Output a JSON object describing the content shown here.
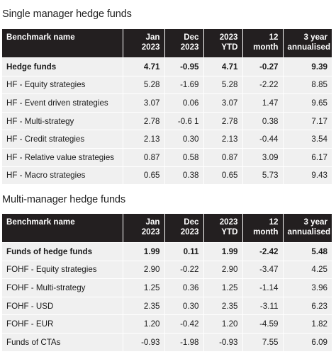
{
  "section1": {
    "title": "Single manager hedge funds",
    "headers": [
      "Benchmark name",
      "Jan\n2023",
      "Dec\n2023",
      "2023\nYTD",
      "12\nmonth",
      "3 year\nannualised"
    ],
    "rows": [
      {
        "name": "Hedge funds",
        "bold": true,
        "values": [
          "4.71",
          "-0.95",
          "4.71",
          "-0.27",
          "9.39"
        ]
      },
      {
        "name": "HF - Equity strategies",
        "bold": false,
        "values": [
          "5.28",
          "-1.69",
          "5.28",
          "-2.22",
          "8.85"
        ]
      },
      {
        "name": "HF - Event driven strategies",
        "bold": false,
        "values": [
          "3.07",
          "0.06",
          "3.07",
          "1.47",
          "9.65"
        ]
      },
      {
        "name": "HF - Multi-strategy",
        "bold": false,
        "values": [
          "2.78",
          "-0.6 1",
          "2.78",
          "0.38",
          "7.17"
        ]
      },
      {
        "name": "HF - Credit strategies",
        "bold": false,
        "values": [
          "2.13",
          "0.30",
          "2.13",
          "-0.44",
          "3.54"
        ]
      },
      {
        "name": "HF - Relative value strategies",
        "bold": false,
        "values": [
          "0.87",
          "0.58",
          "0.87",
          "3.09",
          "6.17"
        ]
      },
      {
        "name": "HF - Macro strategies",
        "bold": false,
        "values": [
          "0.65",
          "0.38",
          "0.65",
          "5.73",
          "9.43"
        ]
      }
    ]
  },
  "section2": {
    "title": "Multi-manager hedge funds",
    "headers": [
      "Benchmark name",
      "Jan\n2023",
      "Dec\n2023",
      "2023\nYTD",
      "12\nmonth",
      "3 year\nannualised"
    ],
    "rows": [
      {
        "name": "Funds of hedge funds",
        "bold": true,
        "values": [
          "1.99",
          "0.11",
          "1.99",
          "-2.42",
          "5.48"
        ]
      },
      {
        "name": "FOHF - Equity strategies",
        "bold": false,
        "values": [
          "2.90",
          "-0.22",
          "2.90",
          "-3.47",
          "4.25"
        ]
      },
      {
        "name": "FOHF - Multi-strategy",
        "bold": false,
        "values": [
          "1.25",
          "0.36",
          "1.25",
          "-1.14",
          "3.96"
        ]
      },
      {
        "name": "FOHF - USD",
        "bold": false,
        "values": [
          "2.35",
          "0.30",
          "2.35",
          "-3.11",
          "6.23"
        ]
      },
      {
        "name": "FOHF - EUR",
        "bold": false,
        "values": [
          "1.20",
          "-0.42",
          "1.20",
          "-4.59",
          "1.82"
        ]
      },
      {
        "name": "Funds of CTAs",
        "bold": false,
        "values": [
          "-0.93",
          "-1.98",
          "-0.93",
          "7.55",
          "6.09"
        ]
      }
    ]
  },
  "colors": {
    "header_bg": "#231f20",
    "row_bg": "#f0f0f0",
    "header_text": "#ffffff"
  }
}
